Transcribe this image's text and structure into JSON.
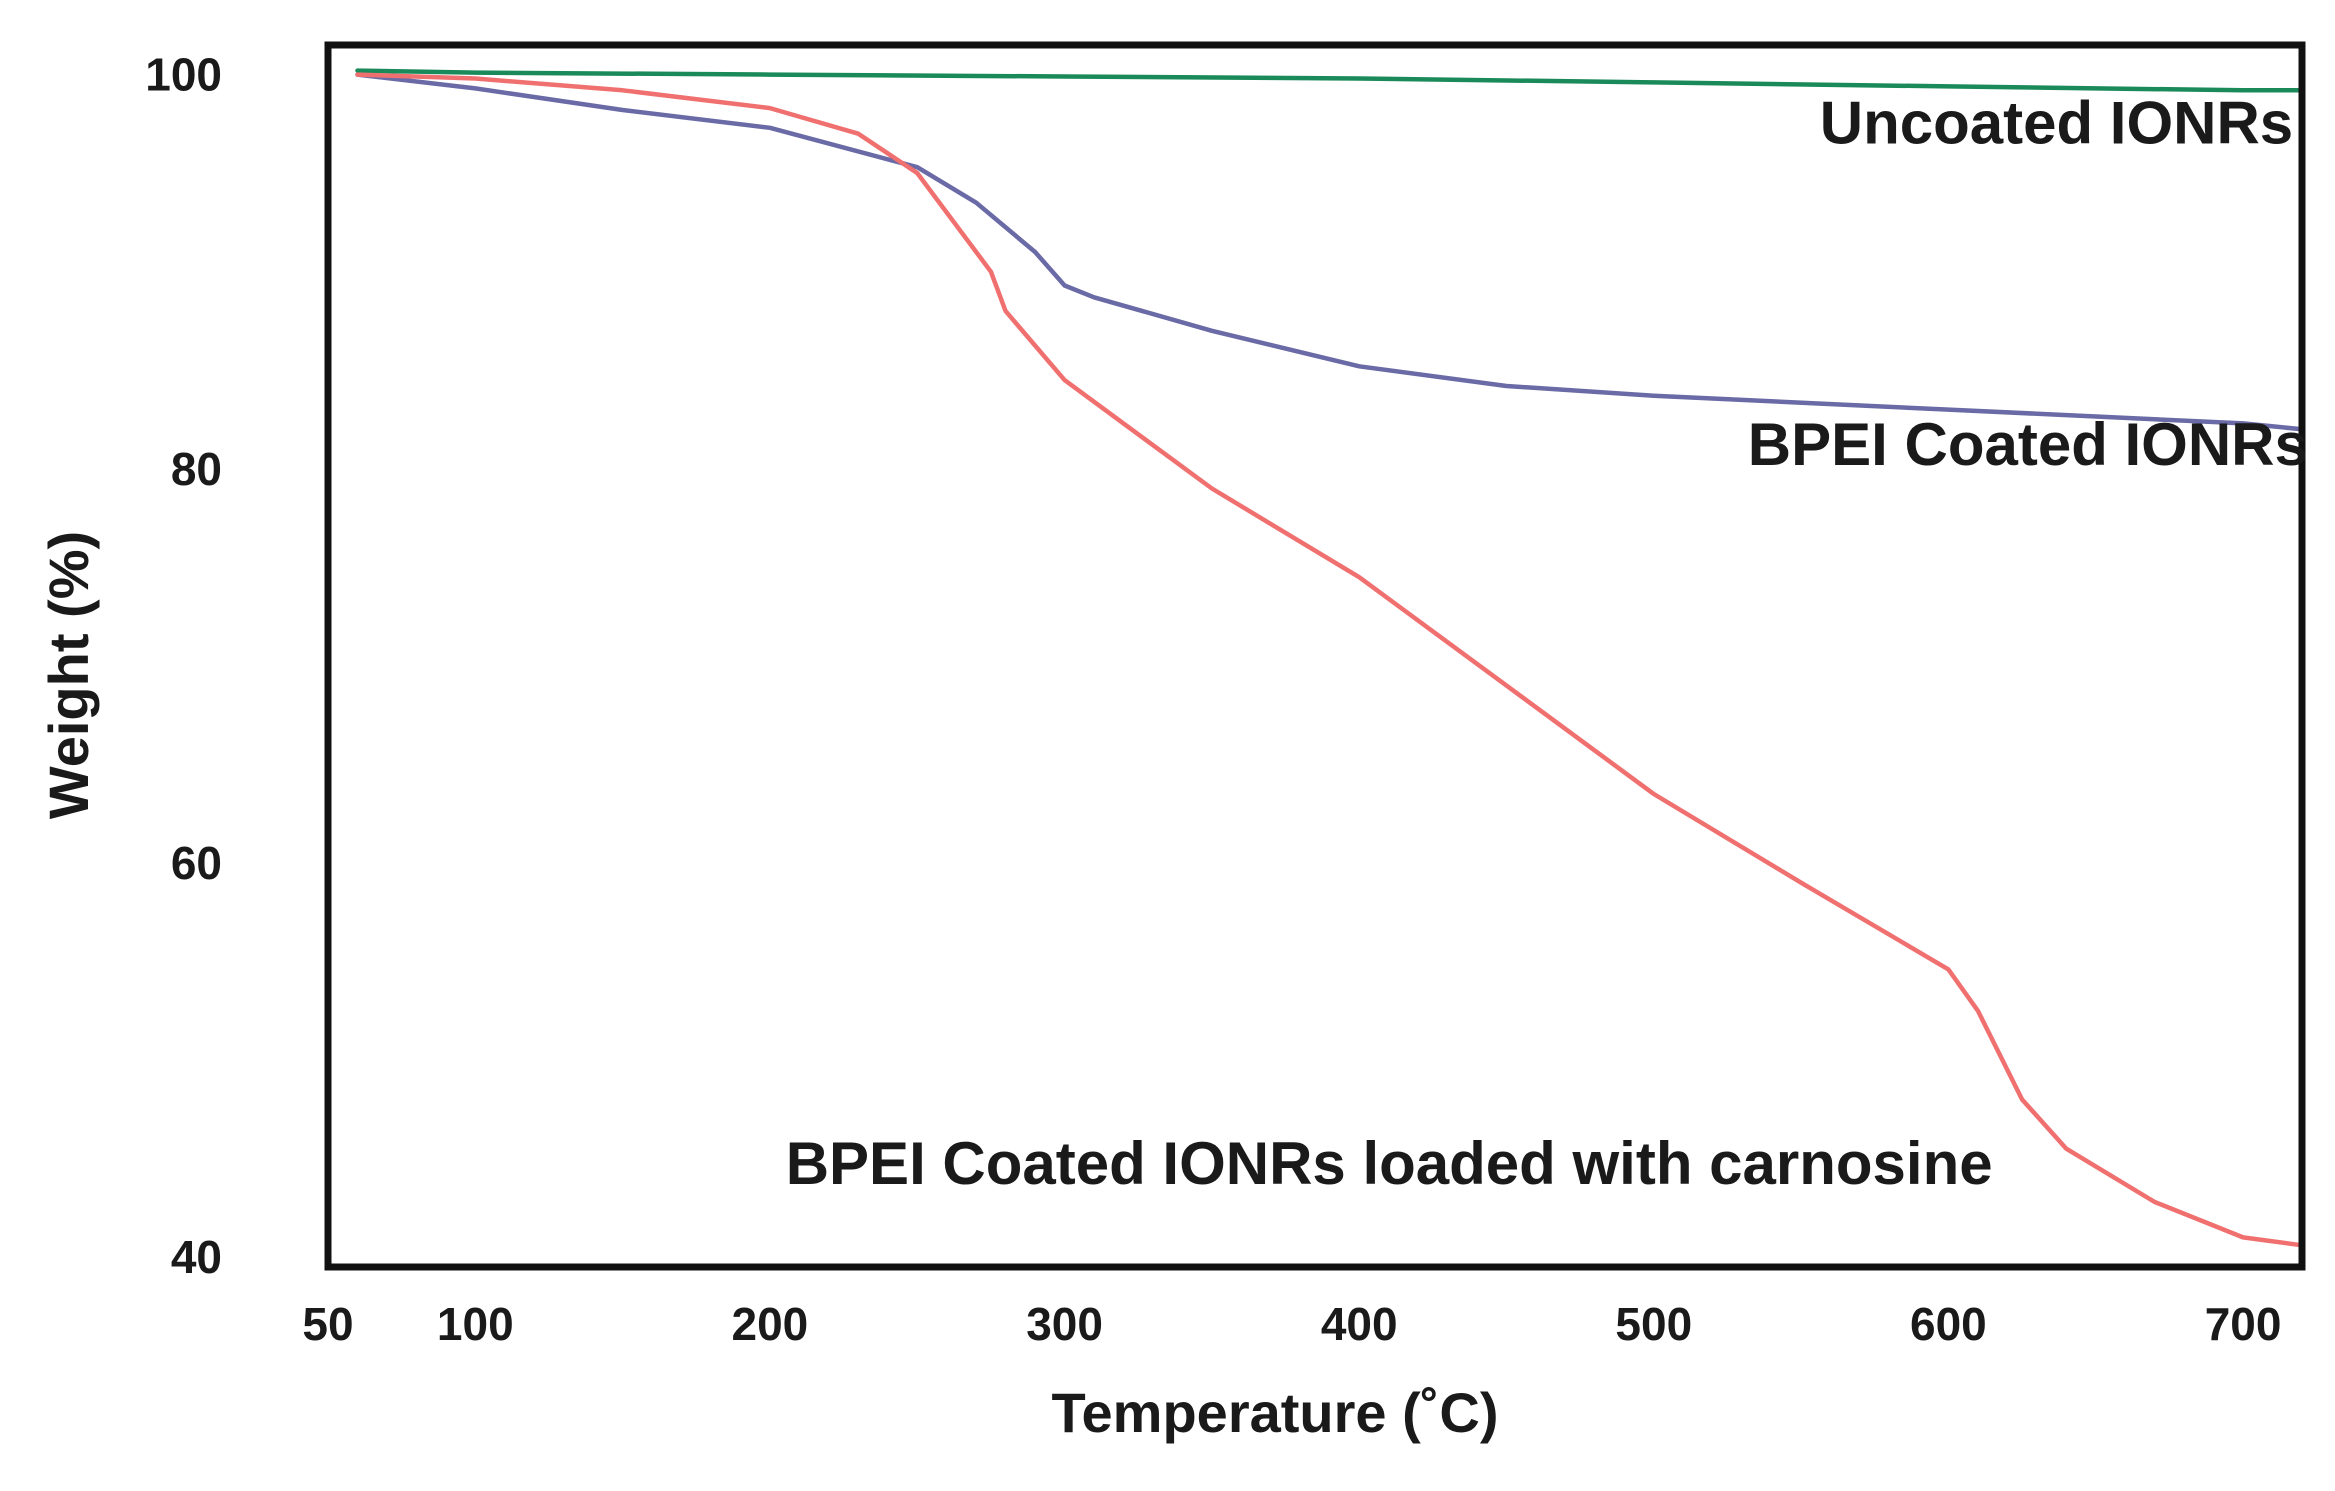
{
  "chart_data": {
    "type": "line",
    "xlabel": "Temperature (˚C)",
    "ylabel": "Weight (%)",
    "xlim": [
      50,
      720
    ],
    "ylim": [
      39.5,
      101.5
    ],
    "x_ticks": [
      {
        "value": 50,
        "label": "50"
      },
      {
        "value": 100,
        "label": "100"
      },
      {
        "value": 200,
        "label": "200"
      },
      {
        "value": 300,
        "label": "300"
      },
      {
        "value": 400,
        "label": "400"
      },
      {
        "value": 500,
        "label": "500"
      },
      {
        "value": 600,
        "label": "600"
      },
      {
        "value": 700,
        "label": "700"
      }
    ],
    "y_ticks": [
      {
        "value": 100,
        "label": "100"
      },
      {
        "value": 80,
        "label": "80"
      },
      {
        "value": 60,
        "label": "60"
      },
      {
        "value": 40,
        "label": "40"
      }
    ],
    "grid": false,
    "legend": "inline labels",
    "series": [
      {
        "name": "Uncoated IONRs",
        "color": "#1b8a5a",
        "x": [
          60,
          100,
          200,
          300,
          400,
          500,
          600,
          700,
          720
        ],
        "y": [
          100.2,
          100.1,
          100.0,
          99.9,
          99.8,
          99.6,
          99.4,
          99.2,
          99.2
        ]
      },
      {
        "name": "BPEI Coated IONRs",
        "color": "#6a6aa6",
        "x": [
          60,
          100,
          150,
          200,
          250,
          270,
          290,
          300,
          310,
          350,
          400,
          450,
          500,
          600,
          700,
          720
        ],
        "y": [
          100.0,
          99.3,
          98.2,
          97.3,
          95.3,
          93.5,
          91.0,
          89.3,
          88.7,
          87.0,
          85.2,
          84.2,
          83.7,
          83.0,
          82.3,
          82.0
        ]
      },
      {
        "name": "BPEI Coated IONRs loaded with carnosine",
        "color": "#f07070",
        "x": [
          60,
          100,
          150,
          200,
          230,
          250,
          265,
          275,
          280,
          300,
          350,
          400,
          450,
          500,
          550,
          600,
          610,
          625,
          640,
          670,
          700,
          720
        ],
        "y": [
          100.0,
          99.8,
          99.2,
          98.3,
          97.0,
          95.0,
          92.0,
          90.0,
          88.0,
          84.5,
          79.0,
          74.5,
          69.0,
          63.5,
          59.0,
          54.6,
          52.5,
          48.0,
          45.5,
          42.8,
          41.0,
          40.6
        ]
      }
    ],
    "annotations": [
      {
        "text": "Uncoated IONRs",
        "x": 717,
        "y": 96.5,
        "anchor": "end"
      },
      {
        "text": "BPEI Coated IONRs",
        "x": 722,
        "y": 80.2,
        "anchor": "end"
      },
      {
        "text": "BPEI Coated IONRs loaded with carnosine",
        "x": 615,
        "y": 43.7,
        "anchor": "end"
      }
    ]
  }
}
